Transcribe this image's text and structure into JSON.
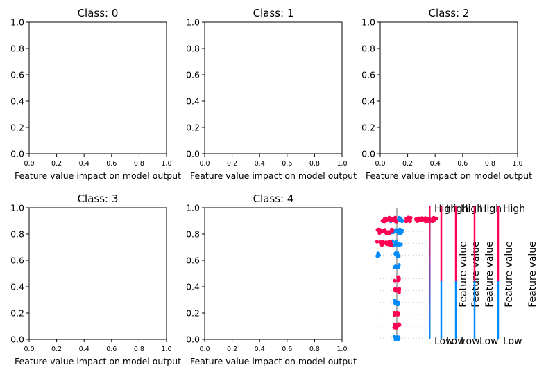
{
  "figure_colors": {
    "axes": "#000000",
    "shap_red": "#ff0052",
    "shap_blue": "#008bfb",
    "zero_line": "#999999",
    "row_guide": "#cccccc"
  },
  "chart_data": [
    {
      "type": "scatter",
      "title": "Class: 0",
      "xlabel": "Feature value impact on model output",
      "ylabel": "",
      "xlim": [
        0,
        1
      ],
      "ylim": [
        0,
        1
      ],
      "xticks": [
        "0.0",
        "0.2",
        "0.4",
        "0.6",
        "0.8",
        "1.0"
      ],
      "yticks": [
        "0.0",
        "0.2",
        "0.4",
        "0.6",
        "0.8",
        "1.0"
      ],
      "series": []
    },
    {
      "type": "scatter",
      "title": "Class: 1",
      "xlabel": "Feature value impact on model output",
      "ylabel": "",
      "xlim": [
        0,
        1
      ],
      "ylim": [
        0,
        1
      ],
      "xticks": [
        "0.0",
        "0.2",
        "0.4",
        "0.6",
        "0.8",
        "1.0"
      ],
      "yticks": [
        "0.0",
        "0.2",
        "0.4",
        "0.6",
        "0.8",
        "1.0"
      ],
      "series": []
    },
    {
      "type": "scatter",
      "title": "Class: 2",
      "xlabel": "Feature value impact on model output",
      "ylabel": "",
      "xlim": [
        0,
        1
      ],
      "ylim": [
        0,
        1
      ],
      "xticks": [
        "0.0",
        "0.2",
        "0.4",
        "0.6",
        "0.8",
        "1.0"
      ],
      "yticks": [
        "0.0",
        "0.2",
        "0.4",
        "0.6",
        "0.8",
        "1.0"
      ],
      "series": []
    },
    {
      "type": "scatter",
      "title": "Class: 3",
      "xlabel": "Feature value impact on model output",
      "ylabel": "",
      "xlim": [
        0,
        1
      ],
      "ylim": [
        0,
        1
      ],
      "xticks": [
        "0.0",
        "0.2",
        "0.4",
        "0.6",
        "0.8",
        "1.0"
      ],
      "yticks": [
        "0.0",
        "0.2",
        "0.4",
        "0.6",
        "0.8",
        "1.0"
      ],
      "series": []
    },
    {
      "type": "scatter",
      "title": "Class: 4",
      "xlabel": "Feature value impact on model output",
      "ylabel": "",
      "xlim": [
        0,
        1
      ],
      "ylim": [
        0,
        1
      ],
      "xticks": [
        "0.0",
        "0.2",
        "0.4",
        "0.6",
        "0.8",
        "1.0"
      ],
      "yticks": [
        "0.0",
        "0.2",
        "0.4",
        "0.6",
        "0.8",
        "1.0"
      ],
      "series": []
    },
    {
      "type": "scatter",
      "subtype": "shap-beeswarm",
      "title": "",
      "xlabel": "",
      "ylabel": "",
      "axes_visible": false,
      "zero_line": true,
      "rows": [
        {
          "clusters": [
            {
              "dx": 0.0,
              "spread": 0.8,
              "color": "#008bfb"
            },
            {
              "dx": 3.2,
              "spread": 2.0,
              "color": "#ff0052"
            },
            {
              "dx": -1.0,
              "spread": 1.0,
              "color": "#ff0052"
            }
          ]
        },
        {
          "clusters": [
            {
              "dx": 0.0,
              "spread": 0.8,
              "color": "#008bfb"
            },
            {
              "dx": -1.6,
              "spread": 1.0,
              "color": "#ff0052"
            }
          ]
        },
        {
          "clusters": [
            {
              "dx": 0.0,
              "spread": 0.6,
              "color": "#008bfb"
            },
            {
              "dx": -1.6,
              "spread": 1.0,
              "color": "#ff0052"
            }
          ]
        },
        {
          "clusters": [
            {
              "dx": 0.0,
              "spread": 0.3,
              "color": "#008bfb"
            },
            {
              "dx": -2.5,
              "spread": 0.1,
              "color": "#008bfb"
            }
          ]
        },
        {
          "clusters": [
            {
              "dx": 0.0,
              "spread": 0.35,
              "color": "#008bfb"
            }
          ]
        },
        {
          "clusters": [
            {
              "dx": 0.0,
              "spread": 0.35,
              "color": "#ff0052"
            }
          ]
        },
        {
          "clusters": [
            {
              "dx": 0.0,
              "spread": 0.35,
              "color": "#ff0052"
            }
          ]
        },
        {
          "clusters": [
            {
              "dx": 0.0,
              "spread": 0.3,
              "color": "#008bfb"
            }
          ]
        },
        {
          "clusters": [
            {
              "dx": 0.0,
              "spread": 0.35,
              "color": "#ff0052"
            }
          ]
        },
        {
          "clusters": [
            {
              "dx": 0.0,
              "spread": 0.35,
              "color": "#ff0052"
            }
          ]
        },
        {
          "clusters": [
            {
              "dx": 0.0,
              "spread": 0.35,
              "color": "#008bfb"
            }
          ]
        }
      ],
      "colorbars": [
        {
          "label": "Feature value",
          "high": "High",
          "low": "Low",
          "gradient": true
        },
        {
          "label": "Feature value",
          "high": "High",
          "low": "Low",
          "gradient": false
        },
        {
          "label": "Feature value",
          "high": "High",
          "low": "Low",
          "gradient": false
        },
        {
          "label": "Feature value",
          "high": "High",
          "low": "Low",
          "gradient": false
        },
        {
          "label": "Feature value",
          "high": "High",
          "low": "Low",
          "gradient": false
        }
      ]
    }
  ]
}
